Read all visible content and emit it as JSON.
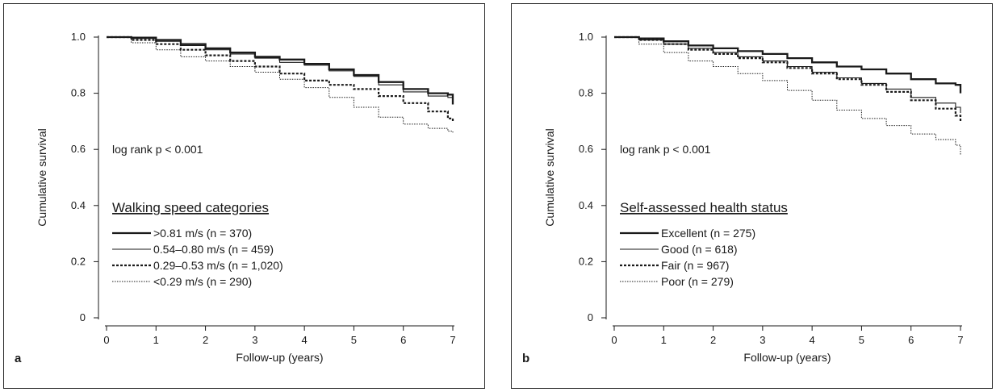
{
  "chart_data": [
    {
      "type": "line",
      "panel_label": "a",
      "xlabel": "Follow-up (years)",
      "ylabel": "Cumulative survival",
      "xlim": [
        0,
        7
      ],
      "ylim": [
        0,
        1.0
      ],
      "xticks": [
        "0",
        "1",
        "2",
        "3",
        "4",
        "5",
        "6",
        "7"
      ],
      "yticks": [
        "0",
        "0.2",
        "0.4",
        "0.6",
        "0.8",
        "1.0"
      ],
      "annotation": "log rank p < 0.001",
      "legend_title": "Walking speed categories",
      "legend_placement": "center-left",
      "series": [
        {
          "name": ">0.81 m/s (n = 370)",
          "style": "thick-solid",
          "x": [
            0,
            0.5,
            1,
            1.5,
            2,
            2.5,
            3,
            3.5,
            4,
            4.5,
            5,
            5.5,
            6,
            6.5,
            6.9,
            7.0
          ],
          "y": [
            1.0,
            0.998,
            0.99,
            0.975,
            0.96,
            0.945,
            0.93,
            0.92,
            0.905,
            0.885,
            0.865,
            0.84,
            0.815,
            0.8,
            0.795,
            0.76
          ]
        },
        {
          "name": "0.54–0.80 m/s (n = 459)",
          "style": "thin-solid",
          "x": [
            0,
            0.5,
            1,
            1.5,
            2,
            2.5,
            3,
            3.5,
            4,
            4.5,
            5,
            5.5,
            6,
            6.5,
            6.9,
            7.0
          ],
          "y": [
            1.0,
            0.995,
            0.985,
            0.97,
            0.955,
            0.94,
            0.925,
            0.91,
            0.9,
            0.88,
            0.86,
            0.83,
            0.805,
            0.79,
            0.785,
            0.77
          ]
        },
        {
          "name": "0.29–0.53 m/s (n = 1,020)",
          "style": "thick-dotted",
          "x": [
            0,
            0.5,
            1,
            1.5,
            2,
            2.5,
            3,
            3.5,
            4,
            4.5,
            5,
            5.5,
            6,
            6.5,
            6.9,
            7.0
          ],
          "y": [
            1.0,
            0.99,
            0.975,
            0.955,
            0.935,
            0.915,
            0.895,
            0.87,
            0.845,
            0.83,
            0.815,
            0.79,
            0.765,
            0.735,
            0.71,
            0.7
          ]
        },
        {
          "name": "<0.29 m/s (n = 290)",
          "style": "thin-dotted",
          "x": [
            0,
            0.5,
            1,
            1.5,
            2,
            2.5,
            3,
            3.5,
            4,
            4.5,
            5,
            5.5,
            6,
            6.5,
            6.9,
            7.0
          ],
          "y": [
            1.0,
            0.98,
            0.955,
            0.93,
            0.915,
            0.895,
            0.875,
            0.85,
            0.82,
            0.785,
            0.75,
            0.715,
            0.69,
            0.675,
            0.665,
            0.66
          ]
        }
      ]
    },
    {
      "type": "line",
      "panel_label": "b",
      "xlabel": "Follow-up (years)",
      "ylabel": "Cumulative survival",
      "xlim": [
        0,
        7
      ],
      "ylim": [
        0,
        1.0
      ],
      "xticks": [
        "0",
        "1",
        "2",
        "3",
        "4",
        "5",
        "6",
        "7"
      ],
      "yticks": [
        "0",
        "0.2",
        "0.4",
        "0.6",
        "0.8",
        "1.0"
      ],
      "annotation": "log rank p < 0.001",
      "legend_title": "Self-assessed health status",
      "legend_placement": "center-left",
      "series": [
        {
          "name": "Excellent (n = 275)",
          "style": "thick-solid",
          "x": [
            0,
            0.5,
            1,
            1.5,
            2,
            2.5,
            3,
            3.5,
            4,
            4.5,
            5,
            5.5,
            6,
            6.5,
            6.9,
            7.0
          ],
          "y": [
            1.0,
            0.995,
            0.985,
            0.97,
            0.96,
            0.95,
            0.94,
            0.925,
            0.91,
            0.895,
            0.885,
            0.87,
            0.85,
            0.835,
            0.83,
            0.8
          ]
        },
        {
          "name": "Good (n = 618)",
          "style": "thin-solid",
          "x": [
            0,
            0.5,
            1,
            1.5,
            2,
            2.5,
            3,
            3.5,
            4,
            4.5,
            5,
            5.5,
            6,
            6.5,
            6.9,
            7.0
          ],
          "y": [
            1.0,
            0.99,
            0.975,
            0.96,
            0.945,
            0.93,
            0.915,
            0.895,
            0.875,
            0.855,
            0.835,
            0.815,
            0.785,
            0.765,
            0.75,
            0.73
          ]
        },
        {
          "name": "Fair (n = 967)",
          "style": "thick-dotted",
          "x": [
            0,
            0.5,
            1,
            1.5,
            2,
            2.5,
            3,
            3.5,
            4,
            4.5,
            5,
            5.5,
            6,
            6.5,
            6.9,
            7.0
          ],
          "y": [
            1.0,
            0.99,
            0.975,
            0.955,
            0.94,
            0.925,
            0.91,
            0.89,
            0.87,
            0.85,
            0.83,
            0.805,
            0.775,
            0.745,
            0.72,
            0.7
          ]
        },
        {
          "name": "Poor (n = 279)",
          "style": "thin-dotted",
          "x": [
            0,
            0.5,
            1,
            1.5,
            2,
            2.5,
            3,
            3.5,
            4,
            4.5,
            5,
            5.5,
            6,
            6.5,
            6.9,
            7.0
          ],
          "y": [
            1.0,
            0.975,
            0.945,
            0.915,
            0.895,
            0.87,
            0.845,
            0.81,
            0.775,
            0.74,
            0.71,
            0.685,
            0.655,
            0.635,
            0.615,
            0.58
          ]
        }
      ]
    }
  ]
}
